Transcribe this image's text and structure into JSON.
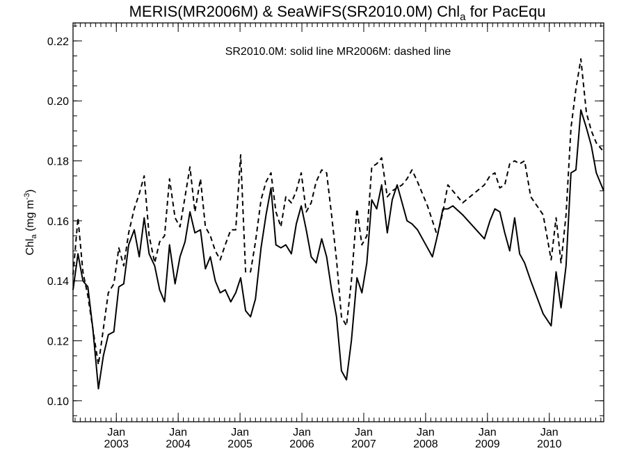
{
  "chart_data": {
    "type": "line",
    "title": {
      "main": "MERIS(MR2006M) & SeaWiFS(SR2010.0M)  Chl",
      "subscript": "a",
      "suffix": " for PacEqu"
    },
    "annotation": "SR2010.0M: solid line   MR2006M: dashed line",
    "ylabel": {
      "main": "Chl",
      "subscript": "a",
      "suffix": " (mg m",
      "superscript": "-3",
      "end": ")"
    },
    "x_unit": "decimal year",
    "xlim": [
      2002.3,
      2010.88
    ],
    "ylim": [
      0.093,
      0.226
    ],
    "y_ticks": [
      "0.10",
      "0.12",
      "0.14",
      "0.16",
      "0.18",
      "0.20",
      "0.22"
    ],
    "x_ticks": [
      {
        "month": "Jan",
        "year": "2003"
      },
      {
        "month": "Jan",
        "year": "2004"
      },
      {
        "month": "Jan",
        "year": "2005"
      },
      {
        "month": "Jan",
        "year": "2006"
      },
      {
        "month": "Jan",
        "year": "2007"
      },
      {
        "month": "Jan",
        "year": "2008"
      },
      {
        "month": "Jan",
        "year": "2009"
      },
      {
        "month": "Jan",
        "year": "2010"
      }
    ],
    "series": [
      {
        "style": "solid",
        "x": [
          2002.3,
          2002.38,
          2002.46,
          2002.54,
          2002.62,
          2002.71,
          2002.79,
          2002.87,
          2002.96,
          2003.04,
          2003.12,
          2003.2,
          2003.29,
          2003.37,
          2003.45,
          2003.53,
          2003.62,
          2003.7,
          2003.78,
          2003.86,
          2003.95,
          2004.03,
          2004.11,
          2004.19,
          2004.27,
          2004.36,
          2004.44,
          2004.52,
          2004.6,
          2004.68,
          2004.76,
          2004.85,
          2004.93,
          2005.01,
          2005.09,
          2005.17,
          2005.25,
          2005.34,
          2005.42,
          2005.5,
          2005.58,
          2005.66,
          2005.74,
          2005.83,
          2005.91,
          2005.99,
          2006.07,
          2006.15,
          2006.23,
          2006.32,
          2006.4,
          2006.48,
          2006.56,
          2006.64,
          2006.72,
          2006.8,
          2006.89,
          2006.97,
          2007.05,
          2007.13,
          2007.21,
          2007.29,
          2007.38,
          2007.46,
          2007.54,
          2007.62,
          2007.7,
          2007.78,
          2007.87,
          2007.95,
          2008.03,
          2008.11,
          2008.19,
          2008.28,
          2008.36,
          2008.44,
          2008.6,
          2008.95,
          2009.04,
          2009.12,
          2009.2,
          2009.28,
          2009.36,
          2009.44,
          2009.52,
          2009.6,
          2009.7,
          2009.9,
          2010.03,
          2010.11,
          2010.19,
          2010.27,
          2010.35,
          2010.43,
          2010.51,
          2010.6,
          2010.68,
          2010.76,
          2010.88
        ],
        "y": [
          0.137,
          0.149,
          0.14,
          0.138,
          0.124,
          0.104,
          0.115,
          0.122,
          0.123,
          0.138,
          0.139,
          0.152,
          0.157,
          0.148,
          0.161,
          0.149,
          0.145,
          0.137,
          0.133,
          0.152,
          0.139,
          0.148,
          0.153,
          0.163,
          0.156,
          0.157,
          0.144,
          0.148,
          0.14,
          0.136,
          0.137,
          0.133,
          0.136,
          0.141,
          0.13,
          0.128,
          0.134,
          0.151,
          0.162,
          0.171,
          0.152,
          0.151,
          0.152,
          0.149,
          0.159,
          0.165,
          0.157,
          0.148,
          0.146,
          0.154,
          0.148,
          0.137,
          0.128,
          0.11,
          0.107,
          0.12,
          0.141,
          0.136,
          0.146,
          0.167,
          0.164,
          0.172,
          0.156,
          0.167,
          0.172,
          0.166,
          0.16,
          0.159,
          0.157,
          0.154,
          0.151,
          0.148,
          0.155,
          0.164,
          0.164,
          0.165,
          0.162,
          0.154,
          0.16,
          0.164,
          0.163,
          0.156,
          0.15,
          0.161,
          0.149,
          0.146,
          0.14,
          0.129,
          0.125,
          0.143,
          0.131,
          0.145,
          0.176,
          0.177,
          0.197,
          0.191,
          0.185,
          0.176,
          0.17
        ]
      },
      {
        "style": "dashed",
        "x": [
          2002.3,
          2002.38,
          2002.46,
          2002.54,
          2002.62,
          2002.71,
          2002.79,
          2002.87,
          2002.96,
          2003.04,
          2003.12,
          2003.2,
          2003.29,
          2003.37,
          2003.45,
          2003.53,
          2003.62,
          2003.7,
          2003.78,
          2003.86,
          2003.95,
          2004.03,
          2004.11,
          2004.19,
          2004.27,
          2004.36,
          2004.44,
          2004.52,
          2004.6,
          2004.68,
          2004.76,
          2004.85,
          2004.93,
          2005.01,
          2005.09,
          2005.17,
          2005.25,
          2005.34,
          2005.42,
          2005.5,
          2005.58,
          2005.66,
          2005.74,
          2005.83,
          2005.91,
          2005.99,
          2006.07,
          2006.15,
          2006.23,
          2006.32,
          2006.4,
          2006.48,
          2006.56,
          2006.64,
          2006.72,
          2006.8,
          2006.89,
          2006.97,
          2007.05,
          2007.13,
          2007.21,
          2007.29,
          2007.38,
          2007.46,
          2007.54,
          2007.62,
          2007.7,
          2007.78,
          2007.87,
          2007.95,
          2008.03,
          2008.11,
          2008.19,
          2008.28,
          2008.36,
          2008.44,
          2008.6,
          2008.95,
          2009.04,
          2009.12,
          2009.2,
          2009.28,
          2009.36,
          2009.44,
          2009.52,
          2009.6,
          2009.7,
          2009.9,
          2010.03,
          2010.11,
          2010.19,
          2010.27,
          2010.35,
          2010.43,
          2010.51,
          2010.6,
          2010.68,
          2010.76,
          2010.88
        ],
        "y": [
          0.142,
          0.161,
          0.143,
          0.135,
          0.124,
          0.112,
          0.124,
          0.136,
          0.139,
          0.151,
          0.145,
          0.156,
          0.164,
          0.169,
          0.175,
          0.155,
          0.146,
          0.153,
          0.155,
          0.174,
          0.161,
          0.158,
          0.168,
          0.178,
          0.163,
          0.174,
          0.158,
          0.155,
          0.15,
          0.147,
          0.152,
          0.157,
          0.157,
          0.182,
          0.143,
          0.143,
          0.153,
          0.167,
          0.173,
          0.176,
          0.163,
          0.158,
          0.168,
          0.166,
          0.17,
          0.176,
          0.163,
          0.166,
          0.173,
          0.177,
          0.176,
          0.162,
          0.147,
          0.128,
          0.125,
          0.14,
          0.164,
          0.152,
          0.155,
          0.178,
          0.179,
          0.181,
          0.168,
          0.17,
          0.171,
          0.172,
          0.174,
          0.177,
          0.173,
          0.169,
          0.165,
          0.16,
          0.155,
          0.163,
          0.172,
          0.17,
          0.166,
          0.172,
          0.175,
          0.176,
          0.171,
          0.172,
          0.179,
          0.18,
          0.179,
          0.18,
          0.168,
          0.162,
          0.147,
          0.161,
          0.146,
          0.162,
          0.191,
          0.204,
          0.214,
          0.196,
          0.19,
          0.186,
          0.183
        ]
      }
    ]
  }
}
